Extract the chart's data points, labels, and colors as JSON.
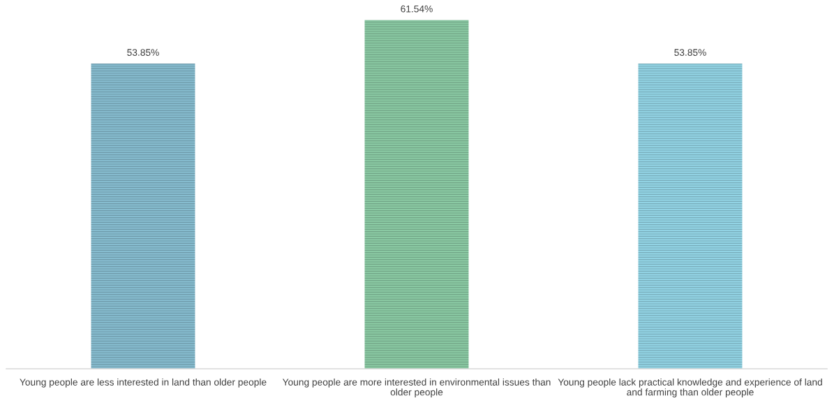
{
  "chart_data": {
    "type": "bar",
    "categories": [
      "Young people are less interested in land than older people",
      "Young people are more interested in environmental issues than older people",
      "Young people lack practical knowledge and experience of land and farming than older people"
    ],
    "values": [
      53.85,
      61.54,
      53.85
    ],
    "value_labels": [
      "53.85%",
      "61.54%",
      "53.85%"
    ],
    "colors": [
      "#86bccf",
      "#8ac9a3",
      "#92d3e4"
    ],
    "tick_labels": "x",
    "grid": false,
    "legend": false
  }
}
